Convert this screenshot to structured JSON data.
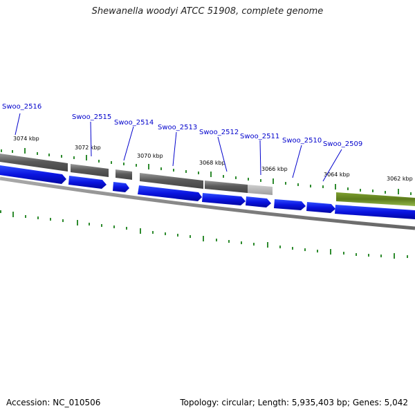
{
  "title": "Shewanella woodyi ATCC 51908, complete genome",
  "footer": {
    "accession": "Accession: NC_010506",
    "summary": "Topology: circular; Length: 5,935,403 bp; Genes: 5,042"
  },
  "colors": {
    "gene": "#0a1eee",
    "cds": "#555555",
    "rna_feature": "#6b8e23",
    "tick": "#2e8b2e",
    "label": "#0000cc"
  },
  "genes": [
    {
      "name": "Swoo_2516"
    },
    {
      "name": "Swoo_2515"
    },
    {
      "name": "Swoo_2514"
    },
    {
      "name": "Swoo_2513"
    },
    {
      "name": "Swoo_2512"
    },
    {
      "name": "Swoo_2511"
    },
    {
      "name": "Swoo_2510"
    },
    {
      "name": "Swoo_2509"
    }
  ],
  "scale": [
    "3074 kbp",
    "3072 kbp",
    "3070 kbp",
    "3068 kbp",
    "3066 kbp",
    "3064 kbp",
    "3062 kbp"
  ]
}
